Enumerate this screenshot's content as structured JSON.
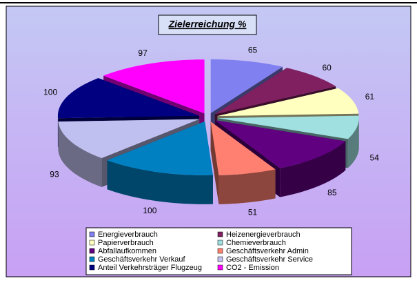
{
  "chart_data": {
    "type": "pie",
    "title": "Zielerreichung %",
    "categories": [
      "Energieverbrauch",
      "Heizenergieverbrauch",
      "Papierverbrauch",
      "Chemieverbrauch",
      "Abfallaufkommen",
      "Geschäftsverkehr Admin",
      "Geschäftsverkehr Verkauf",
      "Geschäftsverkehr Service",
      "Anteil Verkehrsträger Flugzeug",
      "CO2 - Emission"
    ],
    "values": [
      65,
      60,
      61,
      54,
      85,
      51,
      100,
      93,
      100,
      97
    ],
    "colors": [
      "#8080f0",
      "#802060",
      "#ffffc0",
      "#a0e0e0",
      "#600080",
      "#ff8070",
      "#0080c0",
      "#c0c0f0",
      "#000080",
      "#ff00ff"
    ],
    "legend": "bottom"
  }
}
